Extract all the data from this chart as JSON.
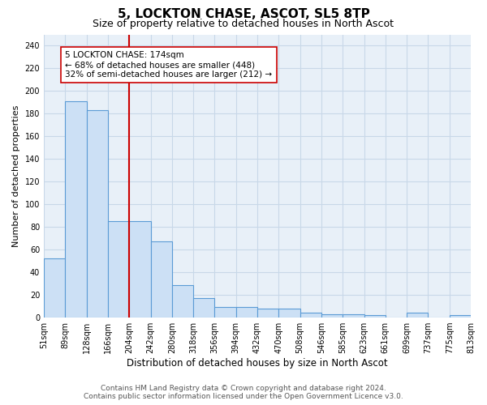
{
  "title": "5, LOCKTON CHASE, ASCOT, SL5 8TP",
  "subtitle": "Size of property relative to detached houses in North Ascot",
  "xlabel": "Distribution of detached houses by size in North Ascot",
  "ylabel": "Number of detached properties",
  "bar_values": [
    52,
    191,
    183,
    85,
    85,
    67,
    29,
    17,
    9,
    9,
    8,
    8,
    4,
    3,
    3,
    2,
    0,
    4,
    0,
    2
  ],
  "bar_labels": [
    "51sqm",
    "89sqm",
    "128sqm",
    "166sqm",
    "204sqm",
    "242sqm",
    "280sqm",
    "318sqm",
    "356sqm",
    "394sqm",
    "432sqm",
    "470sqm",
    "508sqm",
    "546sqm",
    "585sqm",
    "623sqm",
    "661sqm",
    "699sqm",
    "737sqm",
    "775sqm",
    "813sqm"
  ],
  "bar_color": "#cce0f5",
  "bar_edge_color": "#5b9bd5",
  "bar_edge_width": 0.8,
  "red_line_x": 3.5,
  "red_line_color": "#cc0000",
  "annotation_text": "5 LOCKTON CHASE: 174sqm\n← 68% of detached houses are smaller (448)\n32% of semi-detached houses are larger (212) →",
  "annotation_box_color": "white",
  "annotation_box_edge_color": "#cc0000",
  "annotation_fontsize": 7.5,
  "ylim": [
    0,
    250
  ],
  "yticks": [
    0,
    20,
    40,
    60,
    80,
    100,
    120,
    140,
    160,
    180,
    200,
    220,
    240
  ],
  "grid_color": "#c8d8e8",
  "background_color": "#e8f0f8",
  "footer_text": "Contains HM Land Registry data © Crown copyright and database right 2024.\nContains public sector information licensed under the Open Government Licence v3.0.",
  "title_fontsize": 11,
  "subtitle_fontsize": 9,
  "xlabel_fontsize": 8.5,
  "ylabel_fontsize": 8,
  "tick_fontsize": 7,
  "footer_fontsize": 6.5
}
